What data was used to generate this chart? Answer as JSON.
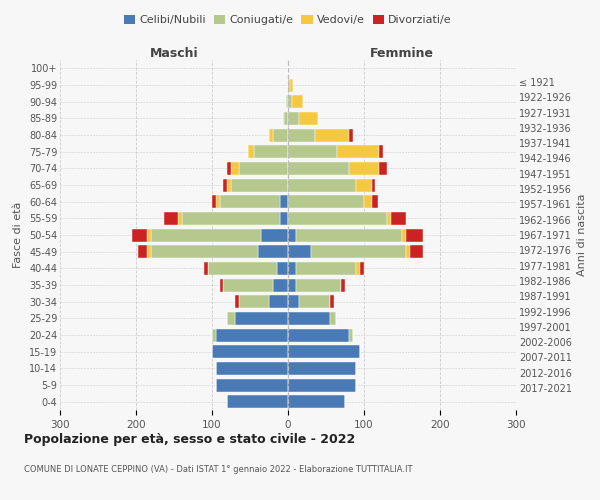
{
  "age_groups": [
    "0-4",
    "5-9",
    "10-14",
    "15-19",
    "20-24",
    "25-29",
    "30-34",
    "35-39",
    "40-44",
    "45-49",
    "50-54",
    "55-59",
    "60-64",
    "65-69",
    "70-74",
    "75-79",
    "80-84",
    "85-89",
    "90-94",
    "95-99",
    "100+"
  ],
  "birth_years": [
    "2017-2021",
    "2012-2016",
    "2007-2011",
    "2002-2006",
    "1997-2001",
    "1992-1996",
    "1987-1991",
    "1982-1986",
    "1977-1981",
    "1972-1976",
    "1967-1971",
    "1962-1966",
    "1957-1961",
    "1952-1956",
    "1947-1951",
    "1942-1946",
    "1937-1941",
    "1932-1936",
    "1927-1931",
    "1922-1926",
    "≤ 1921"
  ],
  "maschi": {
    "celibi": [
      80,
      95,
      95,
      100,
      95,
      70,
      25,
      20,
      15,
      40,
      35,
      10,
      10,
      0,
      0,
      0,
      0,
      0,
      0,
      0,
      0
    ],
    "coniugati": [
      0,
      0,
      0,
      0,
      5,
      10,
      40,
      65,
      90,
      140,
      145,
      130,
      80,
      75,
      65,
      45,
      20,
      5,
      2,
      0,
      0
    ],
    "vedovi": [
      0,
      0,
      0,
      0,
      0,
      0,
      0,
      0,
      0,
      5,
      5,
      5,
      5,
      5,
      10,
      8,
      5,
      2,
      0,
      0,
      0
    ],
    "divorziati": [
      0,
      0,
      0,
      0,
      0,
      0,
      5,
      5,
      5,
      12,
      20,
      18,
      5,
      5,
      5,
      0,
      0,
      0,
      0,
      0,
      0
    ]
  },
  "femmine": {
    "nubili": [
      75,
      90,
      90,
      95,
      80,
      55,
      15,
      10,
      10,
      30,
      10,
      0,
      0,
      0,
      0,
      0,
      0,
      0,
      0,
      0,
      0
    ],
    "coniugate": [
      0,
      0,
      0,
      0,
      5,
      8,
      40,
      60,
      80,
      125,
      140,
      130,
      100,
      90,
      80,
      65,
      35,
      15,
      5,
      2,
      0
    ],
    "vedove": [
      0,
      0,
      0,
      0,
      0,
      0,
      0,
      0,
      5,
      5,
      5,
      5,
      10,
      20,
      40,
      55,
      45,
      25,
      15,
      5,
      0
    ],
    "divorziate": [
      0,
      0,
      0,
      0,
      0,
      0,
      5,
      5,
      5,
      18,
      22,
      20,
      8,
      5,
      10,
      5,
      5,
      0,
      0,
      0,
      0
    ]
  },
  "colors": {
    "celibi_nubili": "#4a7ab5",
    "coniugati": "#b5c98e",
    "vedovi": "#f5c842",
    "divorziati": "#cc2222"
  },
  "xlim": 300,
  "title": "Popolazione per età, sesso e stato civile - 2022",
  "subtitle": "COMUNE DI LONATE CEPPINO (VA) - Dati ISTAT 1° gennaio 2022 - Elaborazione TUTTITALIA.IT",
  "ylabel_left": "Fasce di età",
  "ylabel_right": "Anni di nascita",
  "xlabel_left": "Maschi",
  "xlabel_right": "Femmine",
  "bg_color": "#f7f7f7",
  "grid_color": "#cccccc"
}
